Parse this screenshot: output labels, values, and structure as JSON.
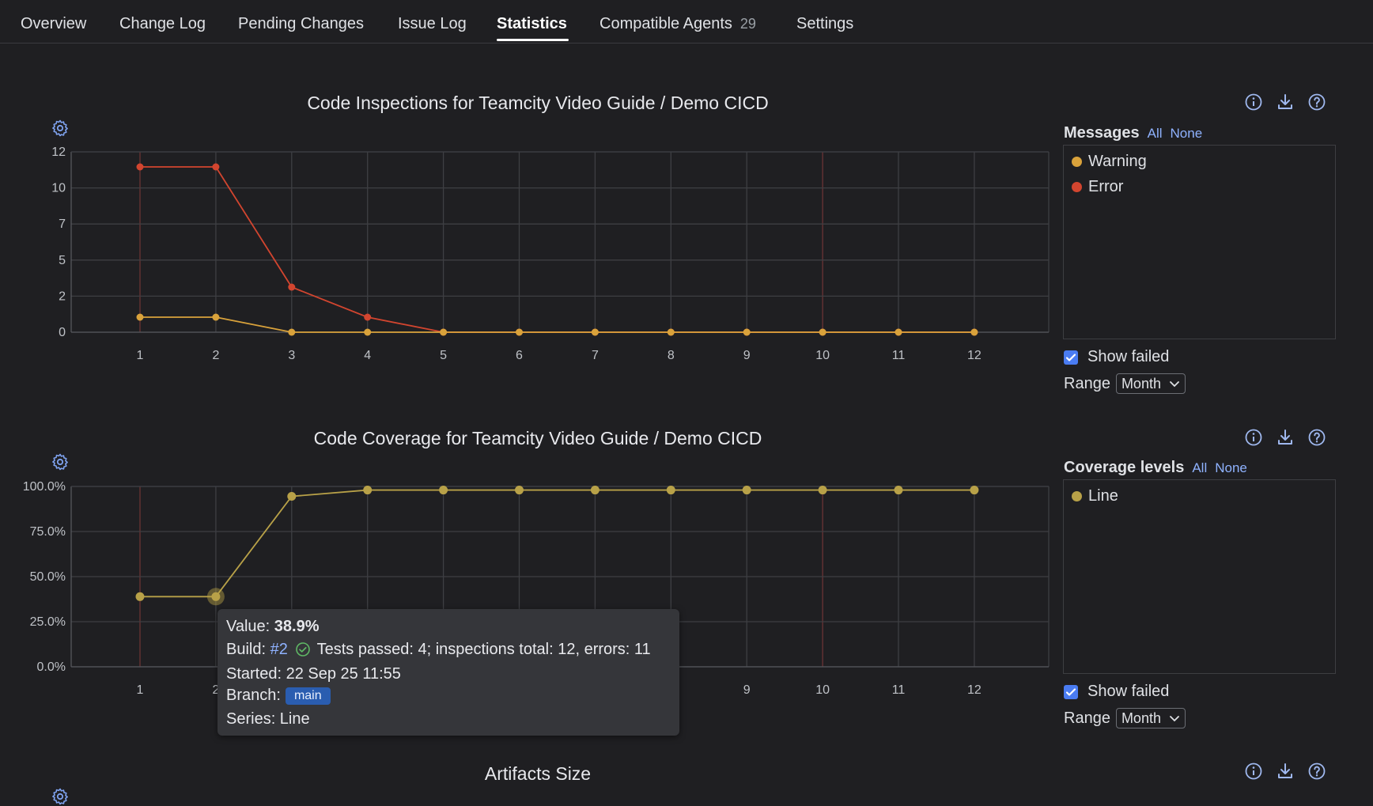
{
  "tabs": [
    {
      "label": "Overview",
      "count": ""
    },
    {
      "label": "Change Log",
      "count": ""
    },
    {
      "label": "Pending Changes",
      "count": ""
    },
    {
      "label": "Issue Log",
      "count": ""
    },
    {
      "label": "Statistics",
      "count": ""
    },
    {
      "label": "Compatible Agents",
      "count": "29"
    },
    {
      "label": "Settings",
      "count": ""
    }
  ],
  "active_tab": "Statistics",
  "inspections": {
    "title": "Code Inspections for Teamcity Video Guide / Demo CICD",
    "panel_title": "Messages",
    "link_all": "All",
    "link_none": "None",
    "legend": [
      {
        "label": "Warning",
        "color": "#d9a23b"
      },
      {
        "label": "Error",
        "color": "#d2452f"
      }
    ],
    "show_failed": "Show failed",
    "range_label": "Range",
    "range_value": "Month"
  },
  "coverage": {
    "title": "Code Coverage for Teamcity Video Guide / Demo CICD",
    "panel_title": "Coverage levels",
    "link_all": "All",
    "link_none": "None",
    "legend": [
      {
        "label": "Line",
        "color": "#b8a148"
      }
    ],
    "show_failed": "Show failed",
    "range_label": "Range",
    "range_value": "Month"
  },
  "artifacts": {
    "title": "Artifacts Size"
  },
  "tooltip": {
    "value_label": "Value:",
    "value": "38.9%",
    "build_label": "Build:",
    "build": "#2",
    "build_info": "Tests passed: 4; inspections total: 12, errors: 11",
    "started": "Started: 22 Sep 25 11:55",
    "branch_label": "Branch:",
    "branch": "main",
    "series": "Series: Line"
  },
  "chart_data": [
    {
      "type": "line",
      "title": "Code Inspections for Teamcity Video Guide / Demo CICD",
      "x": [
        1,
        2,
        3,
        4,
        5,
        6,
        7,
        8,
        9,
        10,
        11,
        12
      ],
      "y_ticks": [
        "12",
        "10",
        "7",
        "5",
        "2",
        "0"
      ],
      "ylim": [
        0,
        12
      ],
      "grid": true,
      "legend_position": "right",
      "series": [
        {
          "name": "Error",
          "color": "#d2452f",
          "values": [
            11,
            11,
            3,
            1,
            0,
            0,
            0,
            0,
            0,
            0,
            0,
            0
          ]
        },
        {
          "name": "Warning",
          "color": "#d9a23b",
          "values": [
            1,
            1,
            0,
            0,
            0,
            0,
            0,
            0,
            0,
            0,
            0,
            0
          ]
        }
      ],
      "failed_builds": [
        1,
        10
      ]
    },
    {
      "type": "line",
      "title": "Code Coverage for Teamcity Video Guide / Demo CICD",
      "x": [
        1,
        2,
        3,
        4,
        5,
        6,
        7,
        8,
        9,
        10,
        11,
        12
      ],
      "y_ticks": [
        "100.0%",
        "75.0%",
        "50.0%",
        "25.0%",
        "0.0%"
      ],
      "ylim": [
        0,
        100
      ],
      "grid": true,
      "legend_position": "right",
      "series": [
        {
          "name": "Line",
          "color": "#b8a148",
          "values": [
            38.9,
            38.9,
            94.5,
            98,
            98,
            98,
            98,
            98,
            98,
            98,
            98,
            98
          ]
        }
      ],
      "failed_builds": [
        1,
        10
      ]
    }
  ]
}
